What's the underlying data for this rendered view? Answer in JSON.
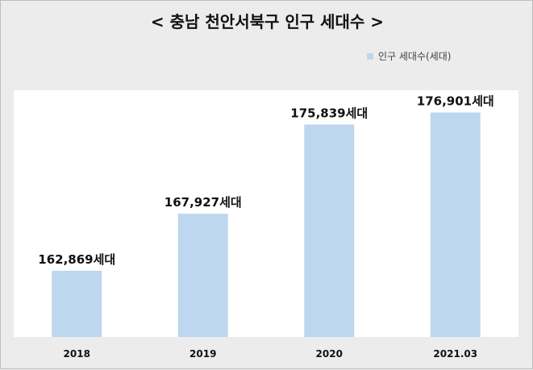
{
  "chart_data": {
    "type": "bar",
    "title": "< 충남 천안서북구 인구 세대수 >",
    "categories": [
      "2018",
      "2019",
      "2020",
      "2021.03"
    ],
    "series": [
      {
        "name": "인구 세대수(세대)",
        "values": [
          162869,
          167927,
          175839,
          176901
        ]
      }
    ],
    "data_labels": [
      "162,869세대",
      "167,927세대",
      "175,839세대",
      "176,901세대"
    ],
    "ylim": [
      157000,
      178800
    ],
    "legend_position": "top-right",
    "grid": false,
    "bar_color": "#bdd7ee"
  }
}
